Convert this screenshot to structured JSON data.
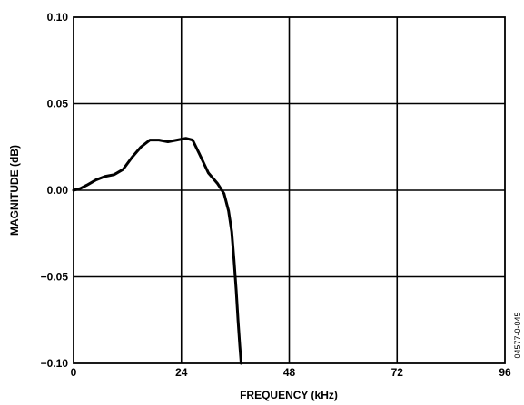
{
  "chart_data": {
    "type": "line",
    "title": "",
    "xlabel": "FREQUENCY (kHz)",
    "ylabel": "MAGNITUDE (dB)",
    "xlim": [
      0,
      96
    ],
    "ylim": [
      -0.1,
      0.1
    ],
    "x_ticks": [
      "0",
      "24",
      "48",
      "72",
      "96"
    ],
    "y_ticks": [
      "0.10",
      "0.05",
      "0.00",
      "−0.05",
      "−0.10"
    ],
    "grid": true,
    "legend": "none",
    "figure_id": "04577-0-045",
    "series": [
      {
        "color": "#000000",
        "x": [
          0,
          1.5,
          3,
          5,
          7,
          9,
          11,
          13,
          15,
          17,
          19,
          21,
          23,
          25,
          26.5,
          28,
          30,
          32,
          33.5,
          34.5,
          35.2,
          35.7,
          36.2,
          36.6,
          37.0,
          37.3
        ],
        "y": [
          0.0,
          0.001,
          0.003,
          0.006,
          0.008,
          0.009,
          0.012,
          0.019,
          0.025,
          0.029,
          0.029,
          0.028,
          0.029,
          0.03,
          0.029,
          0.021,
          0.01,
          0.004,
          -0.002,
          -0.012,
          -0.024,
          -0.04,
          -0.058,
          -0.075,
          -0.09,
          -0.1
        ]
      }
    ]
  }
}
